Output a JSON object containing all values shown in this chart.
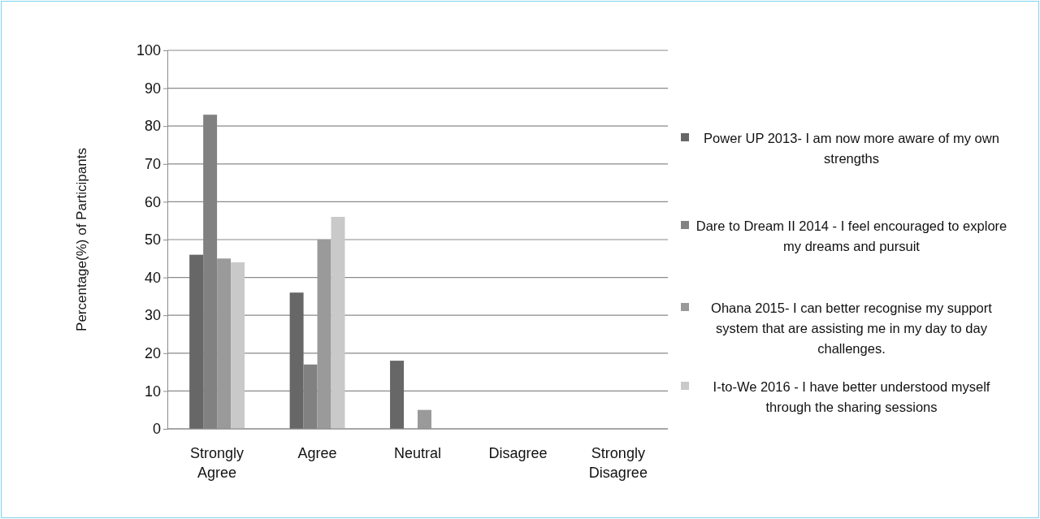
{
  "chart_data": {
    "type": "bar",
    "ylabel": "Percentage(%) of Participants",
    "categories": [
      "Strongly Agree",
      "Agree",
      "Neutral",
      "Disagree",
      "Strongly Disagree"
    ],
    "series": [
      {
        "name": "Power UP 2013- I am now more aware of my own strengths",
        "color": "#676767",
        "values": [
          46,
          36,
          18,
          0,
          0
        ]
      },
      {
        "name": "Dare to Dream II 2014 - I feel encouraged to explore my dreams and pursuit",
        "color": "#818181",
        "values": [
          83,
          17,
          0,
          0,
          0
        ]
      },
      {
        "name": "Ohana 2015- I can better recognise my support system that are assisting me in my day to day challenges.",
        "color": "#9a9a9a",
        "values": [
          45,
          50,
          5,
          0,
          0
        ]
      },
      {
        "name": "I-to-We 2016 - I have better understood myself through the sharing sessions",
        "color": "#c9c9c9",
        "values": [
          44,
          56,
          0,
          0,
          0
        ]
      }
    ],
    "ylim": [
      0,
      100
    ],
    "yticks": [
      0,
      10,
      20,
      30,
      40,
      50,
      60,
      70,
      80,
      90,
      100
    ],
    "grid": "y",
    "legend": "right"
  }
}
